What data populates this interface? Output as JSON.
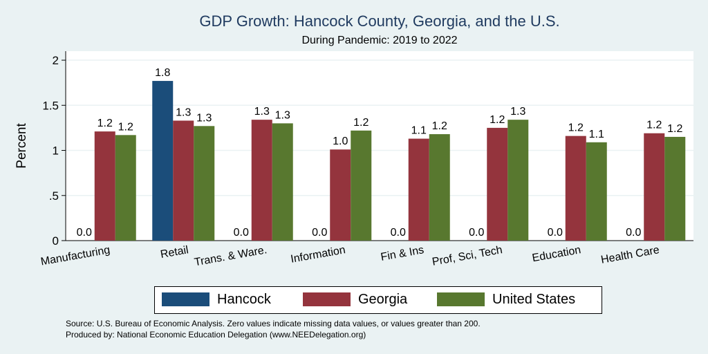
{
  "chart_data": {
    "type": "bar",
    "title": "GDP Growth: Hancock County, Georgia, and the U.S.",
    "subtitle": "During Pandemic: 2019 to 2022",
    "ylabel": "Percent",
    "xlabel": "",
    "ylim": [
      0,
      2.1
    ],
    "yticks": [
      0,
      0.5,
      1,
      1.5,
      2
    ],
    "ytick_labels": [
      "0",
      ".5",
      "1",
      "1.5",
      "2"
    ],
    "categories": [
      "Manufacturing",
      "Retail",
      "Trans. & Ware.",
      "Information",
      "Fin & Ins",
      "Prof, Sci, Tech",
      "Education",
      "Health Care"
    ],
    "series": [
      {
        "name": "Hancock",
        "color": "#1b4d7a",
        "values": [
          0.0,
          1.77,
          0.0,
          0.0,
          0.0,
          0.0,
          0.0,
          0.0
        ],
        "labels": [
          "0.0",
          "1.8",
          "0.0",
          "0.0",
          "0.0",
          "0.0",
          "0.0",
          "0.0"
        ]
      },
      {
        "name": "Georgia",
        "color": "#94343d",
        "values": [
          1.21,
          1.33,
          1.34,
          1.01,
          1.13,
          1.25,
          1.16,
          1.19
        ],
        "labels": [
          "1.2",
          "1.3",
          "1.3",
          "1.0",
          "1.1",
          "1.2",
          "1.2",
          "1.2"
        ]
      },
      {
        "name": "United States",
        "color": "#58782f",
        "values": [
          1.17,
          1.27,
          1.3,
          1.22,
          1.18,
          1.34,
          1.09,
          1.15
        ],
        "labels": [
          "1.2",
          "1.3",
          "1.3",
          "1.2",
          "1.2",
          "1.3",
          "1.1",
          "1.2"
        ]
      }
    ],
    "legend": "bottom"
  },
  "notes": {
    "source": "Source: U.S. Bureau of Economic Analysis. Zero values indicate missing data values, or values greater than 200.",
    "produced_by": "Produced by: National Economic Education Delegation (www.NEEDelegation.org)"
  }
}
